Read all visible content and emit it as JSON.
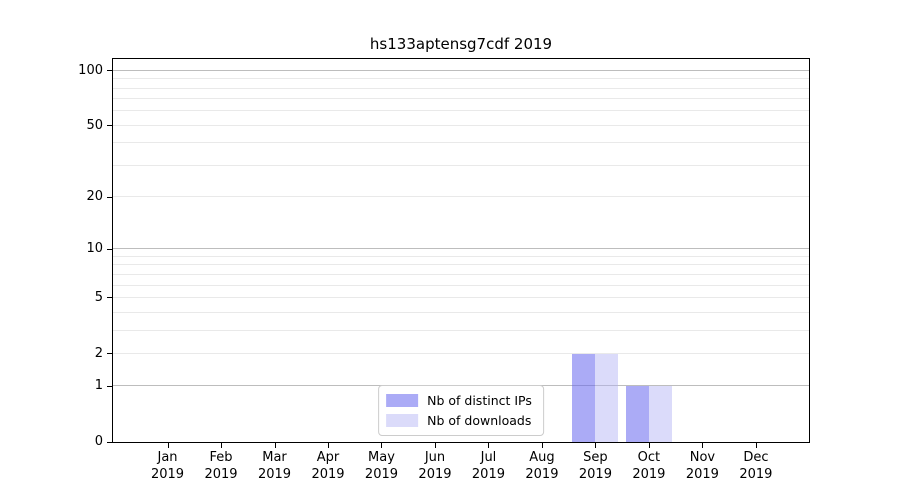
{
  "chart_data": {
    "type": "bar",
    "title": "hs133aptensg7cdf 2019",
    "categories": [
      {
        "month": "Jan",
        "year": "2019"
      },
      {
        "month": "Feb",
        "year": "2019"
      },
      {
        "month": "Mar",
        "year": "2019"
      },
      {
        "month": "Apr",
        "year": "2019"
      },
      {
        "month": "May",
        "year": "2019"
      },
      {
        "month": "Jun",
        "year": "2019"
      },
      {
        "month": "Jul",
        "year": "2019"
      },
      {
        "month": "Aug",
        "year": "2019"
      },
      {
        "month": "Sep",
        "year": "2019"
      },
      {
        "month": "Oct",
        "year": "2019"
      },
      {
        "month": "Nov",
        "year": "2019"
      },
      {
        "month": "Dec",
        "year": "2019"
      }
    ],
    "series": [
      {
        "name": "Nb of distinct IPs",
        "fill": "rgba(102,102,238,0.55)",
        "values": [
          0,
          0,
          0,
          0,
          0,
          0,
          0,
          0,
          2,
          1,
          0,
          0
        ]
      },
      {
        "name": "Nb of downloads",
        "fill": "rgba(175,175,245,0.45)",
        "values": [
          0,
          0,
          0,
          0,
          0,
          0,
          0,
          0,
          2,
          1,
          0,
          0
        ]
      }
    ],
    "yscale": "log1p",
    "ylim": [
      0,
      116
    ],
    "yticks": [
      0,
      1,
      2,
      5,
      10,
      20,
      50,
      100
    ],
    "grid": {
      "major": [
        1,
        10,
        100
      ],
      "minor": [
        2,
        3,
        4,
        5,
        6,
        7,
        8,
        9,
        20,
        30,
        40,
        50,
        60,
        70,
        80,
        90
      ]
    },
    "colors": {
      "major_grid": "#bdbdbd",
      "minor_grid": "#e9e9e9",
      "axis": "#000000",
      "legend_border": "#cccccc"
    },
    "legend_position": "lower center"
  }
}
